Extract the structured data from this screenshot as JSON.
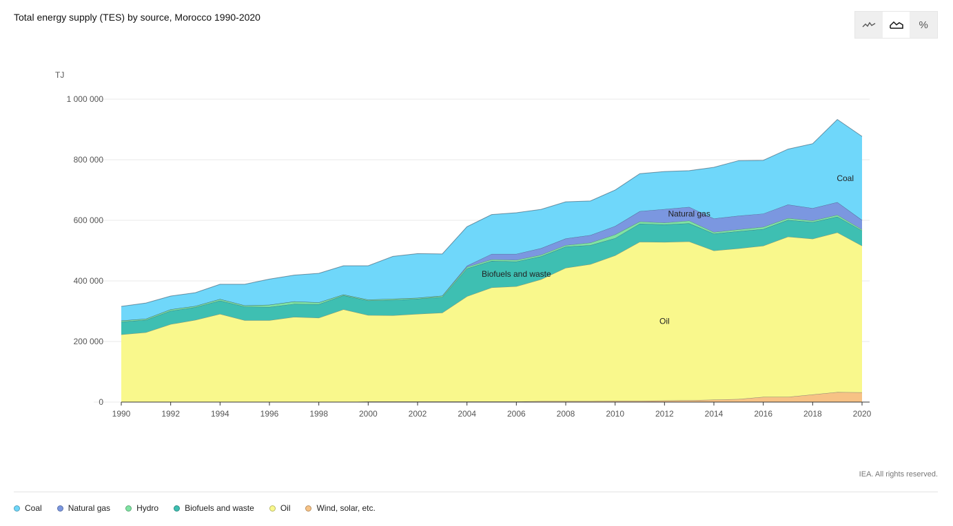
{
  "header": {
    "title": "Total energy supply (TES) by source, Morocco 1990-2020"
  },
  "toggles": [
    {
      "name": "line-chart-icon"
    },
    {
      "name": "area-chart-icon",
      "active": true
    },
    {
      "name": "percent-toggle",
      "label": "%"
    }
  ],
  "credit": "IEA. All rights reserved.",
  "colors": {
    "coal": "#6fd7fa",
    "natural_gas": "#7b97e0",
    "hydro": "#7fe3a2",
    "biofuels": "#3ebfb2",
    "oil": "#f9f88c",
    "wind_solar": "#f7c285"
  },
  "chart_data": {
    "type": "area",
    "title": "Total energy supply (TES) by source, Morocco 1990-2020",
    "ylabel": "TJ",
    "ylim": [
      0,
      1000000
    ],
    "yticks": [
      0,
      200000,
      400000,
      600000,
      800000,
      1000000
    ],
    "ytick_labels": [
      "0",
      "200 000",
      "400 000",
      "600 000",
      "800 000",
      "1 000 000"
    ],
    "xticks": [
      1990,
      1992,
      1994,
      1996,
      1998,
      2000,
      2002,
      2004,
      2006,
      2008,
      2010,
      2012,
      2014,
      2016,
      2018,
      2020
    ],
    "stacked": true,
    "legend_position": "bottom",
    "grid": true,
    "x": [
      1990,
      1991,
      1992,
      1993,
      1994,
      1995,
      1996,
      1997,
      1998,
      1999,
      2000,
      2001,
      2002,
      2003,
      2004,
      2005,
      2006,
      2007,
      2008,
      2009,
      2010,
      2011,
      2012,
      2013,
      2014,
      2015,
      2016,
      2017,
      2018,
      2019,
      2020
    ],
    "series": [
      {
        "key": "wind_solar",
        "name": "Wind, solar, etc.",
        "values": [
          0,
          0,
          0,
          0,
          0,
          0,
          0,
          0,
          0,
          0,
          2000,
          2000,
          2000,
          2000,
          2000,
          2000,
          2000,
          3000,
          3000,
          3000,
          4000,
          4000,
          5000,
          6000,
          8000,
          10000,
          17000,
          17000,
          25000,
          33000,
          32000
        ]
      },
      {
        "key": "oil",
        "name": "Oil",
        "label": "Oil",
        "values": [
          223000,
          230000,
          257000,
          271000,
          291000,
          270000,
          270000,
          281000,
          278000,
          306000,
          285000,
          284000,
          289000,
          293000,
          347000,
          376000,
          380000,
          402000,
          440000,
          452000,
          480000,
          525000,
          523000,
          524000,
          492000,
          497000,
          499000,
          529000,
          514000,
          527000,
          484000
        ]
      },
      {
        "key": "biofuels",
        "name": "Biofuels and waste",
        "label": "Biofuels and waste",
        "values": [
          42000,
          41000,
          44000,
          42000,
          44000,
          45000,
          44000,
          43000,
          45000,
          46000,
          48000,
          51000,
          50000,
          52000,
          92000,
          88000,
          82000,
          76000,
          70000,
          63000,
          57000,
          60000,
          58000,
          60000,
          56000,
          57000,
          55000,
          55000,
          55000,
          52000,
          50000
        ]
      },
      {
        "key": "hydro",
        "name": "Hydro",
        "values": [
          4000,
          4000,
          5000,
          4000,
          5000,
          4000,
          7000,
          8000,
          6000,
          3000,
          3000,
          4000,
          3000,
          4000,
          5000,
          5000,
          5000,
          5000,
          5000,
          8000,
          12000,
          7000,
          6000,
          9000,
          5000,
          6000,
          7000,
          6000,
          5000,
          6000,
          4000
        ]
      },
      {
        "key": "natural_gas",
        "name": "Natural gas",
        "label": "Natural gas",
        "values": [
          0,
          0,
          0,
          0,
          0,
          0,
          0,
          0,
          0,
          0,
          0,
          0,
          0,
          0,
          4000,
          18000,
          20000,
          22000,
          22000,
          25000,
          28000,
          34000,
          45000,
          45000,
          45000,
          45000,
          44000,
          45000,
          41000,
          42000,
          31000
        ]
      },
      {
        "key": "coal",
        "name": "Coal",
        "label": "Coal",
        "values": [
          47000,
          52000,
          44000,
          44000,
          49000,
          70000,
          85000,
          87000,
          96000,
          95000,
          112000,
          140000,
          146000,
          138000,
          129000,
          130000,
          136000,
          128000,
          121000,
          113000,
          119000,
          124000,
          124000,
          120000,
          169000,
          182000,
          176000,
          183000,
          213000,
          273000,
          276000
        ]
      }
    ]
  }
}
